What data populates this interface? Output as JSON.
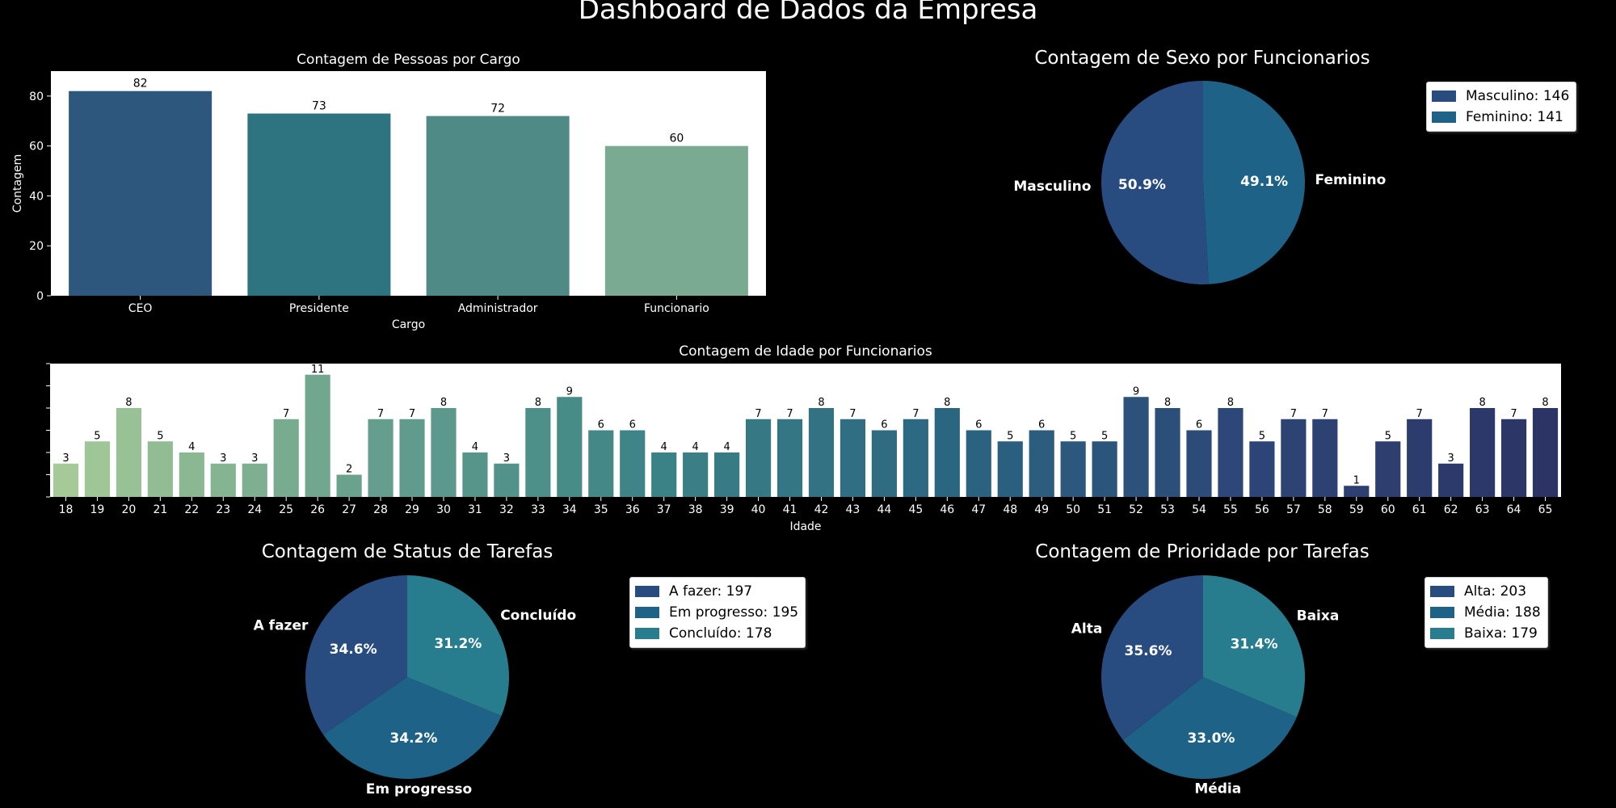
{
  "title": "Dashboard de Dados da Empresa",
  "colors": {
    "text": "#ffffff",
    "plot_bg": "#ffffff",
    "pie_a": "#284b80",
    "pie_b": "#1e6387",
    "pie_c": "#277d8e",
    "ticks": "#ffffff"
  },
  "chart_data": [
    {
      "id": "cargo",
      "type": "bar",
      "title": "Contagem de Pessoas por Cargo",
      "xlabel": "Cargo",
      "ylabel": "Contagem",
      "categories": [
        "CEO",
        "Presidente",
        "Administrador",
        "Funcionario"
      ],
      "values": [
        82,
        73,
        72,
        60
      ],
      "colors": [
        "#2d577c",
        "#2d7480",
        "#4f8a86",
        "#7aaa92"
      ],
      "ylim": [
        0,
        90
      ],
      "yticks": [
        0,
        20,
        40,
        60,
        80
      ],
      "data_labels": true,
      "grid": false
    },
    {
      "id": "sexo",
      "type": "pie",
      "title": "Contagem de Sexo por Funcionarios",
      "labels": [
        "Masculino",
        "Feminino"
      ],
      "values": [
        146,
        141
      ],
      "percent_labels": [
        "50.9%",
        "49.1%"
      ],
      "colors": [
        "#284b80",
        "#1e6387"
      ],
      "legend": [
        "Masculino: 146",
        "Feminino: 141"
      ],
      "legend_position": "top-right"
    },
    {
      "id": "idade",
      "type": "bar",
      "title": "Contagem de Idade por Funcionarios",
      "xlabel": "Idade",
      "ylabel": "",
      "categories": [
        "18",
        "19",
        "20",
        "21",
        "22",
        "23",
        "24",
        "25",
        "26",
        "27",
        "28",
        "29",
        "30",
        "31",
        "32",
        "33",
        "34",
        "35",
        "36",
        "37",
        "38",
        "39",
        "40",
        "41",
        "42",
        "43",
        "44",
        "45",
        "46",
        "47",
        "48",
        "49",
        "50",
        "51",
        "52",
        "53",
        "54",
        "55",
        "56",
        "57",
        "58",
        "59",
        "60",
        "61",
        "62",
        "63",
        "64",
        "65"
      ],
      "values": [
        3,
        5,
        8,
        5,
        4,
        3,
        3,
        7,
        11,
        2,
        7,
        7,
        8,
        4,
        3,
        8,
        9,
        6,
        6,
        4,
        4,
        4,
        7,
        7,
        8,
        7,
        6,
        7,
        8,
        6,
        5,
        6,
        5,
        5,
        9,
        8,
        6,
        8,
        5,
        7,
        7,
        1,
        5,
        7,
        3,
        8,
        7,
        8
      ],
      "palette": "crest",
      "ylim": [
        0,
        12
      ],
      "data_labels": true,
      "grid": false
    },
    {
      "id": "status",
      "type": "pie",
      "title": "Contagem de Status de Tarefas",
      "labels": [
        "A fazer",
        "Em progresso",
        "Concluído"
      ],
      "values": [
        197,
        195,
        178
      ],
      "percent_labels": [
        "34.6%",
        "34.2%",
        "31.2%"
      ],
      "colors": [
        "#284b80",
        "#1e6387",
        "#277d8e"
      ],
      "legend": [
        "A fazer: 197",
        "Em progresso: 195",
        "Concluído: 178"
      ],
      "legend_position": "top-right"
    },
    {
      "id": "prioridade",
      "type": "pie",
      "title": "Contagem de Prioridade por Tarefas",
      "labels": [
        "Alta",
        "Média",
        "Baixa"
      ],
      "values": [
        203,
        188,
        179
      ],
      "percent_labels": [
        "35.6%",
        "33.0%",
        "31.4%"
      ],
      "colors": [
        "#284b80",
        "#1e6387",
        "#277d8e"
      ],
      "legend": [
        "Alta: 203",
        "Média: 188",
        "Baixa: 179"
      ],
      "legend_position": "top-right"
    }
  ]
}
